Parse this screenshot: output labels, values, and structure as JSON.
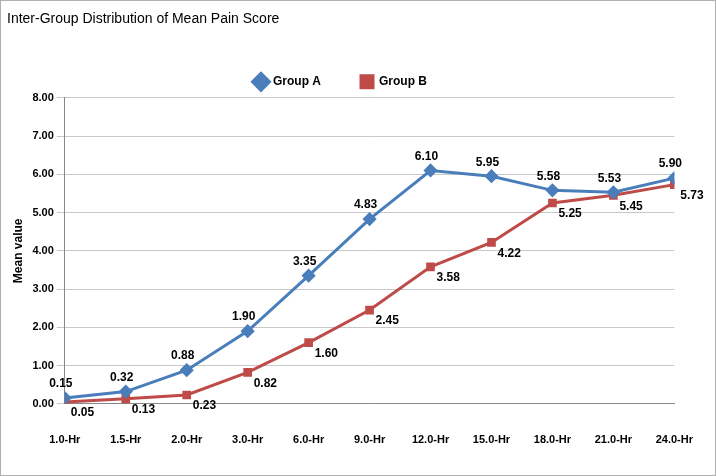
{
  "chart_data": {
    "type": "line",
    "title": "Inter-Group Distribution of Mean Pain Score",
    "ylabel": "Mean value",
    "categories": [
      "1.0-Hr",
      "1.5-Hr",
      "2.0-Hr",
      "3.0-Hr",
      "6.0-Hr",
      "9.0-Hr",
      "12.0-Hr",
      "15.0-Hr",
      "18.0-Hr",
      "21.0-Hr",
      "24.0-Hr"
    ],
    "series": [
      {
        "name": "Group A",
        "color": "#4a7ebb",
        "marker": "diamond",
        "values": [
          0.15,
          0.32,
          0.88,
          1.9,
          3.35,
          4.83,
          6.1,
          5.95,
          5.58,
          5.53,
          5.9
        ],
        "value_labels": [
          "0.15",
          "0.32",
          "0.88",
          "1.90",
          "3.35",
          "4.83",
          "6.10",
          "5.95",
          "5.58",
          "5.53",
          "5.90"
        ]
      },
      {
        "name": "Group B",
        "color": "#be4b48",
        "marker": "square",
        "values": [
          0.05,
          0.13,
          0.23,
          0.82,
          1.6,
          2.45,
          3.58,
          4.22,
          5.25,
          5.45,
          5.73
        ],
        "value_labels": [
          "0.05",
          "0.13",
          "0.23",
          "0.82",
          "1.60",
          "2.45",
          "3.58",
          "4.22",
          "5.25",
          "5.45",
          "5.73"
        ]
      }
    ],
    "ylim": [
      0,
      8
    ],
    "yticks": [
      {
        "value": 0,
        "label": "0.00"
      },
      {
        "value": 1,
        "label": "1.00"
      },
      {
        "value": 2,
        "label": "2.00"
      },
      {
        "value": 3,
        "label": "3.00"
      },
      {
        "value": 4,
        "label": "4.00"
      },
      {
        "value": 5,
        "label": "5.00"
      },
      {
        "value": 6,
        "label": "6.00"
      },
      {
        "value": 7,
        "label": "7.00"
      },
      {
        "value": 8,
        "label": "8.00"
      }
    ],
    "grid": true,
    "legend": "top",
    "data_labels": true
  }
}
